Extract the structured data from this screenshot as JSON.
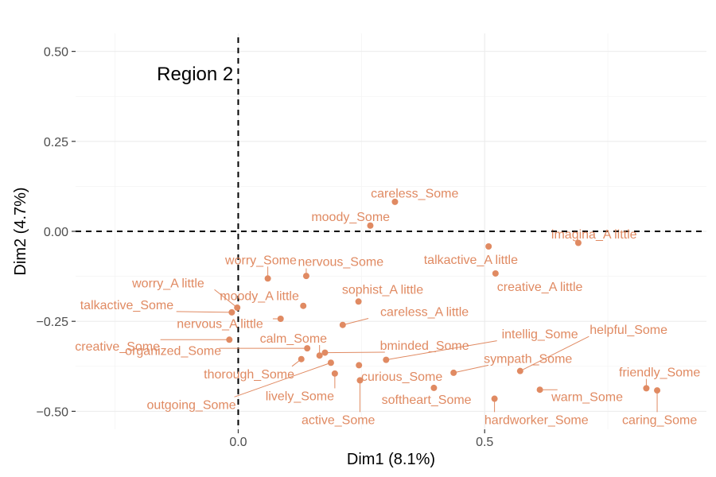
{
  "chart_data": {
    "type": "scatter",
    "xlabel": "Dim1 (8.1%)",
    "ylabel": "Dim2 (4.7%)",
    "xlim": [
      -0.33,
      0.95
    ],
    "ylim": [
      -0.55,
      0.55
    ],
    "x_ticks": [
      {
        "value": 0.0,
        "label": "0.0"
      },
      {
        "value": 0.5,
        "label": "0.5"
      }
    ],
    "y_ticks": [
      {
        "value": 0.5,
        "label": "0.50"
      },
      {
        "value": 0.25,
        "label": "0.25"
      },
      {
        "value": 0.0,
        "label": "0.00"
      },
      {
        "value": -0.25,
        "label": "−0.25"
      },
      {
        "value": -0.5,
        "label": "−0.50"
      }
    ],
    "grid": true,
    "reference_lines": {
      "x": 0,
      "y": 0,
      "style": "dashed"
    },
    "annotation": {
      "text": "Region 2",
      "x": -0.01,
      "y": 0.44
    },
    "point_color": "#E08A62",
    "points": [
      {
        "label": "careless_Some",
        "x": 0.318,
        "y": 0.082
      },
      {
        "label": "moody_Some",
        "x": 0.268,
        "y": 0.016
      },
      {
        "label": "imagina_A little",
        "x": 0.69,
        "y": -0.032
      },
      {
        "label": "talkactive_A little",
        "x": 0.508,
        "y": -0.042
      },
      {
        "label": "creative_A little",
        "x": 0.522,
        "y": -0.117
      },
      {
        "label": "worry_Some",
        "x": 0.06,
        "y": -0.131
      },
      {
        "label": "nervous_Some",
        "x": 0.138,
        "y": -0.124
      },
      {
        "label": "sophist_A little",
        "x": 0.244,
        "y": -0.195
      },
      {
        "label": "worry_A little",
        "x": -0.002,
        "y": -0.212
      },
      {
        "label": "moody_A little",
        "x": 0.132,
        "y": -0.207
      },
      {
        "label": "talkactive_Some",
        "x": -0.013,
        "y": -0.225
      },
      {
        "label": "nervous_A little",
        "x": 0.086,
        "y": -0.243
      },
      {
        "label": "careless_A little",
        "x": 0.212,
        "y": -0.26
      },
      {
        "label": "creative_Some",
        "x": -0.018,
        "y": -0.301
      },
      {
        "label": "organized_Some",
        "x": 0.14,
        "y": -0.325
      },
      {
        "label": "calm_Some",
        "x": 0.165,
        "y": -0.345
      },
      {
        "label": "thorough_Some",
        "x": 0.128,
        "y": -0.355
      },
      {
        "label": "bminded_Some",
        "x": 0.176,
        "y": -0.337
      },
      {
        "label": "intellig_Some",
        "x": 0.3,
        "y": -0.357
      },
      {
        "label": "outgoing_Some",
        "x": 0.188,
        "y": -0.365
      },
      {
        "label": "lively_Some",
        "x": 0.196,
        "y": -0.395
      },
      {
        "label": "curious_Some",
        "x": 0.245,
        "y": -0.372
      },
      {
        "label": "active_Some",
        "x": 0.247,
        "y": -0.414
      },
      {
        "label": "softheart_Some",
        "x": 0.397,
        "y": -0.435
      },
      {
        "label": "sympath_Some",
        "x": 0.437,
        "y": -0.393
      },
      {
        "label": "helpful_Some",
        "x": 0.572,
        "y": -0.388
      },
      {
        "label": "hardworker_Some",
        "x": 0.52,
        "y": -0.465
      },
      {
        "label": "warm_Some",
        "x": 0.612,
        "y": -0.44
      },
      {
        "label": "friendly_Some",
        "x": 0.828,
        "y": -0.436
      },
      {
        "label": "caring_Some",
        "x": 0.85,
        "y": -0.442
      }
    ],
    "labels": [
      {
        "text": "careless_Some",
        "x": 0.358,
        "y": 0.107
      },
      {
        "text": "moody_Some",
        "x": 0.228,
        "y": 0.042
      },
      {
        "text": "imagina_A little",
        "x": 0.722,
        "y": -0.007
      },
      {
        "text": "talkactive_A little",
        "x": 0.472,
        "y": -0.077
      },
      {
        "text": "creative_A little",
        "x": 0.612,
        "y": -0.152
      },
      {
        "text": "worry_Some",
        "x": 0.046,
        "y": -0.078
      },
      {
        "text": "nervous_Some",
        "x": 0.208,
        "y": -0.083
      },
      {
        "text": "sophist_A little",
        "x": 0.293,
        "y": -0.16
      },
      {
        "text": "worry_A little",
        "x": -0.142,
        "y": -0.142
      },
      {
        "text": "moody_A little",
        "x": 0.043,
        "y": -0.178
      },
      {
        "text": "talkactive_Some",
        "x": -0.226,
        "y": -0.203
      },
      {
        "text": "nervous_A little",
        "x": -0.037,
        "y": -0.255
      },
      {
        "text": "careless_A little",
        "x": 0.378,
        "y": -0.222
      },
      {
        "text": "creative_Some",
        "x": -0.245,
        "y": -0.318
      },
      {
        "text": "organized_Some",
        "x": -0.132,
        "y": -0.33
      },
      {
        "text": "calm_Some",
        "x": 0.112,
        "y": -0.296
      },
      {
        "text": "thorough_Some",
        "x": 0.022,
        "y": -0.395
      },
      {
        "text": "bminded_Some",
        "x": 0.378,
        "y": -0.316
      },
      {
        "text": "intellig_Some",
        "x": 0.612,
        "y": -0.284
      },
      {
        "text": "outgoing_Some",
        "x": -0.095,
        "y": -0.48
      },
      {
        "text": "lively_Some",
        "x": 0.125,
        "y": -0.456
      },
      {
        "text": "curious_Some",
        "x": 0.332,
        "y": -0.402
      },
      {
        "text": "active_Some",
        "x": 0.203,
        "y": -0.522
      },
      {
        "text": "softheart_Some",
        "x": 0.382,
        "y": -0.466
      },
      {
        "text": "sympath_Some",
        "x": 0.588,
        "y": -0.352
      },
      {
        "text": "helpful_Some",
        "x": 0.792,
        "y": -0.272
      },
      {
        "text": "hardworker_Some",
        "x": 0.605,
        "y": -0.522
      },
      {
        "text": "warm_Some",
        "x": 0.708,
        "y": -0.458
      },
      {
        "text": "friendly_Some",
        "x": 0.855,
        "y": -0.39
      },
      {
        "text": "caring_Some",
        "x": 0.855,
        "y": -0.522
      }
    ]
  }
}
